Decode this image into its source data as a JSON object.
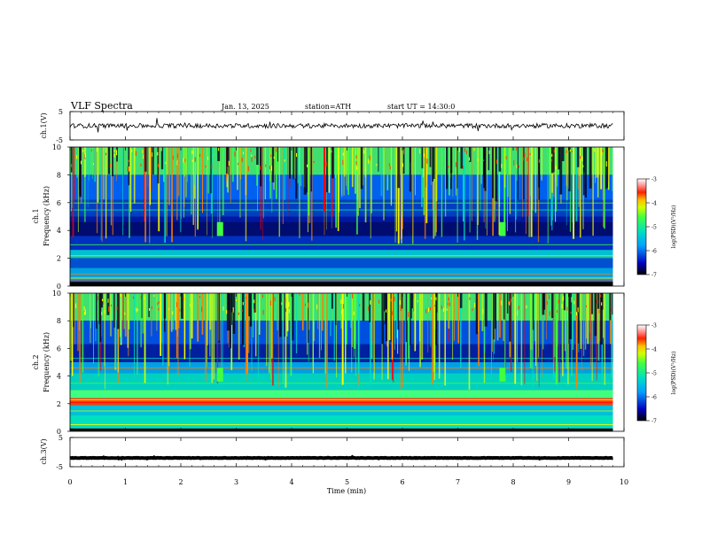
{
  "header": {
    "title": "VLF  Spectra",
    "date": "Jan. 13, 2025",
    "station": "station=ATH",
    "start": "start  UT  =    14:30:0"
  },
  "chart_data": [
    {
      "type": "line",
      "name": "ch1-waveform",
      "ylabel": "ch.1(V)",
      "ylim": [
        -5,
        5
      ],
      "yticks": [
        "5",
        "-5"
      ],
      "xlim": [
        0,
        10
      ],
      "trace_data_end_min": 9.8,
      "trace_level_v": 0.0,
      "trace_color": "#000000"
    },
    {
      "type": "heatmap",
      "name": "ch1-spectrogram",
      "channel_label": "ch.1",
      "ylabel": "Frequency  (kHz)",
      "ylim": [
        0,
        10
      ],
      "yticks": [
        "0",
        "2",
        "4",
        "6",
        "8",
        "10"
      ],
      "xlim": [
        0,
        10
      ],
      "data_end_min": 9.8,
      "colorbar": {
        "label": "log(PSD)(V²/Hz)",
        "range": [
          -7,
          -3
        ],
        "ticks": [
          "-3",
          "-4",
          "-5",
          "-6",
          "-7"
        ]
      },
      "notes": "broadband noise strongest above ~6 kHz, bands near 0.2-1, 2.2 and 4 kHz; spot near 4 kHz at 2.7 and 7.8 min"
    },
    {
      "type": "heatmap",
      "name": "ch2-spectrogram",
      "channel_label": "ch.2",
      "ylabel": "Frequency  (kHz)",
      "ylim": [
        0,
        10
      ],
      "yticks": [
        "0",
        "2",
        "4",
        "6",
        "8",
        "10"
      ],
      "xlim": [
        0,
        10
      ],
      "data_end_min": 9.8,
      "colorbar": {
        "label": "log(PSD)(V²/Hz)",
        "range": [
          -7,
          -3
        ],
        "ticks": [
          "-3",
          "-4",
          "-5",
          "-6",
          "-7"
        ]
      },
      "notes": "strong band near 2.1 kHz (red), wider green/cyan region 2-5 kHz"
    },
    {
      "type": "line",
      "name": "ch3-waveform",
      "ylabel": "ch.3(V)",
      "ylim": [
        -5,
        5
      ],
      "yticks": [
        "5",
        "-5"
      ],
      "xlim": [
        0,
        10
      ],
      "trace_data_end_min": 9.8,
      "trace_level_v": -2.0,
      "trace_color": "#000000"
    }
  ],
  "xaxis": {
    "label": "Time  (min)",
    "ticks": [
      "0",
      "1",
      "2",
      "3",
      "4",
      "5",
      "6",
      "7",
      "8",
      "9",
      "10"
    ]
  },
  "colormap": [
    "#000000",
    "#0000b0",
    "#0040ff",
    "#00b0ff",
    "#00e0c0",
    "#40ff40",
    "#c8ff00",
    "#ffff00",
    "#ff8000",
    "#ff0000",
    "#ff9090",
    "#ffffff"
  ]
}
